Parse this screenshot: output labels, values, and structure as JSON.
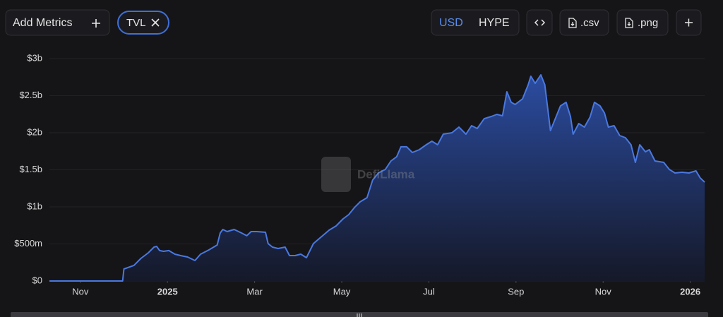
{
  "toolbar": {
    "add_metrics": "Add Metrics",
    "metric": "TVL",
    "currencies": [
      "USD",
      "HYPE"
    ],
    "exports": [
      ".csv",
      ".png"
    ]
  },
  "watermark": "DefiLlama",
  "chart_data": {
    "type": "area",
    "color": "#4a78e0",
    "grid": true,
    "x": [
      -2.71,
      -1.03,
      -1.0,
      -0.77,
      -0.61,
      -0.44,
      -0.31,
      -0.25,
      -0.18,
      -0.09,
      0.03,
      0.17,
      0.3,
      0.46,
      0.63,
      0.76,
      0.95,
      1.14,
      1.21,
      1.27,
      1.37,
      1.53,
      1.7,
      1.82,
      1.92,
      2.05,
      2.25,
      2.31,
      2.41,
      2.54,
      2.7,
      2.8,
      2.93,
      3.06,
      3.19,
      3.35,
      3.54,
      3.71,
      3.87,
      4.03,
      4.16,
      4.29,
      4.42,
      4.58,
      4.71,
      4.84,
      5.0,
      5.13,
      5.26,
      5.36,
      5.49,
      5.62,
      5.78,
      5.94,
      6.07,
      6.2,
      6.33,
      6.53,
      6.69,
      6.85,
      6.98,
      7.11,
      7.27,
      7.43,
      7.56,
      7.69,
      7.79,
      7.89,
      7.98,
      8.15,
      8.28,
      8.34,
      8.44,
      8.57,
      8.66,
      8.79,
      8.89,
      9.02,
      9.15,
      9.25,
      9.31,
      9.44,
      9.57,
      9.7,
      9.8,
      9.93,
      10.03,
      10.12,
      10.25,
      10.38,
      10.51,
      10.64,
      10.74,
      10.84,
      10.97,
      11.06,
      11.19,
      11.39,
      11.52,
      11.65,
      11.81,
      11.97,
      12.13,
      12.23,
      12.33
    ],
    "values": [
      0,
      0,
      0.162,
      0.21,
      0.305,
      0.381,
      0.457,
      0.467,
      0.41,
      0.4,
      0.41,
      0.362,
      0.343,
      0.324,
      0.276,
      0.362,
      0.419,
      0.486,
      0.648,
      0.695,
      0.667,
      0.695,
      0.648,
      0.61,
      0.667,
      0.667,
      0.657,
      0.505,
      0.457,
      0.438,
      0.457,
      0.343,
      0.343,
      0.362,
      0.314,
      0.505,
      0.6,
      0.686,
      0.743,
      0.838,
      0.895,
      0.99,
      1.067,
      1.124,
      1.362,
      1.457,
      1.505,
      1.619,
      1.676,
      1.81,
      1.81,
      1.733,
      1.771,
      1.838,
      1.886,
      1.838,
      1.981,
      2.0,
      2.076,
      1.981,
      2.095,
      2.057,
      2.19,
      2.219,
      2.248,
      2.229,
      2.552,
      2.41,
      2.381,
      2.457,
      2.648,
      2.762,
      2.667,
      2.781,
      2.648,
      2.029,
      2.171,
      2.362,
      2.41,
      2.219,
      1.981,
      2.124,
      2.076,
      2.21,
      2.41,
      2.362,
      2.267,
      2.076,
      2.095,
      1.962,
      1.933,
      1.838,
      1.6,
      1.838,
      1.743,
      1.771,
      1.619,
      1.6,
      1.505,
      1.457,
      1.467,
      1.457,
      1.486,
      1.39,
      1.333
    ],
    "xlim": [
      -2.71,
      12.33
    ],
    "xticks": [
      {
        "value": -2,
        "label": "Nov"
      },
      {
        "value": 0,
        "label": "2025"
      },
      {
        "value": 2,
        "label": "Mar"
      },
      {
        "value": 4,
        "label": "May"
      },
      {
        "value": 6,
        "label": "Jul"
      },
      {
        "value": 8,
        "label": "Sep"
      },
      {
        "value": 10,
        "label": "Nov"
      },
      {
        "value": 12,
        "label": "2026"
      }
    ],
    "ylim": [
      0,
      3
    ],
    "yticks": [
      {
        "value": 0,
        "label": "$0"
      },
      {
        "value": 0.5,
        "label": "$500m"
      },
      {
        "value": 1,
        "label": "$1b"
      },
      {
        "value": 1.5,
        "label": "$1.5b"
      },
      {
        "value": 2,
        "label": "$2b"
      },
      {
        "value": 2.5,
        "label": "$2.5b"
      },
      {
        "value": 3,
        "label": "$3b"
      }
    ]
  }
}
